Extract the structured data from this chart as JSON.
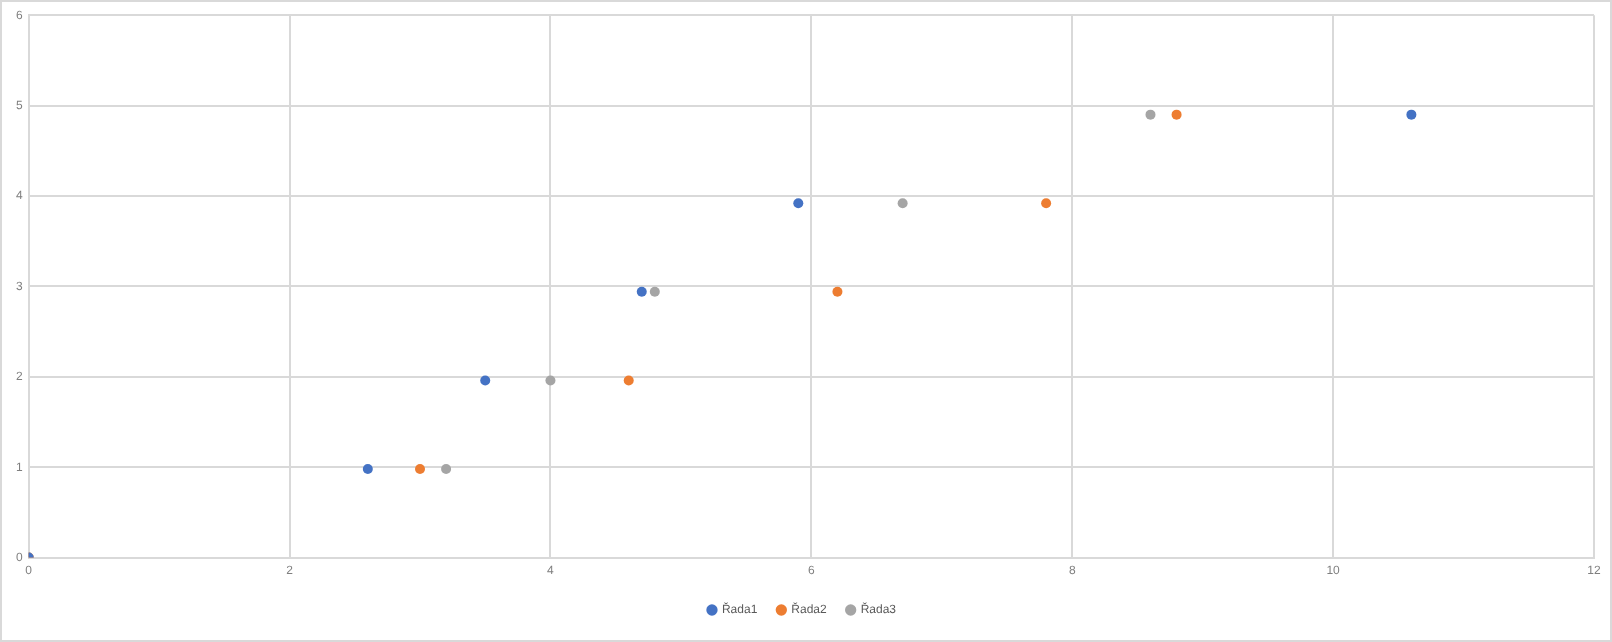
{
  "chart_data": {
    "type": "scatter",
    "xlim": [
      0,
      12
    ],
    "xticks": [
      0,
      2,
      4,
      6,
      8,
      10,
      12
    ],
    "ylim": [
      0,
      6
    ],
    "yticks": [
      0,
      1,
      2,
      3,
      4,
      5,
      6
    ],
    "grid": true,
    "legend": "bottom",
    "marker": "circle",
    "series": [
      {
        "name": "Řada1",
        "color": "#4472c4",
        "x": [
          0,
          2.6,
          3.5,
          4.7,
          5.9,
          10.6
        ],
        "values": [
          0,
          0.98,
          1.96,
          2.94,
          3.92,
          4.9
        ]
      },
      {
        "name": "Řada2",
        "color": "#ed7d31",
        "x": [
          0,
          3.0,
          4.6,
          6.2,
          7.8,
          8.8
        ],
        "values": [
          0,
          0.98,
          1.96,
          2.94,
          3.92,
          4.9
        ]
      },
      {
        "name": "Řada3",
        "color": "#a5a5a5",
        "x": [
          0,
          3.2,
          4.0,
          4.8,
          6.7,
          8.6
        ],
        "values": [
          0,
          0.98,
          1.96,
          2.94,
          3.92,
          4.9
        ]
      }
    ]
  }
}
